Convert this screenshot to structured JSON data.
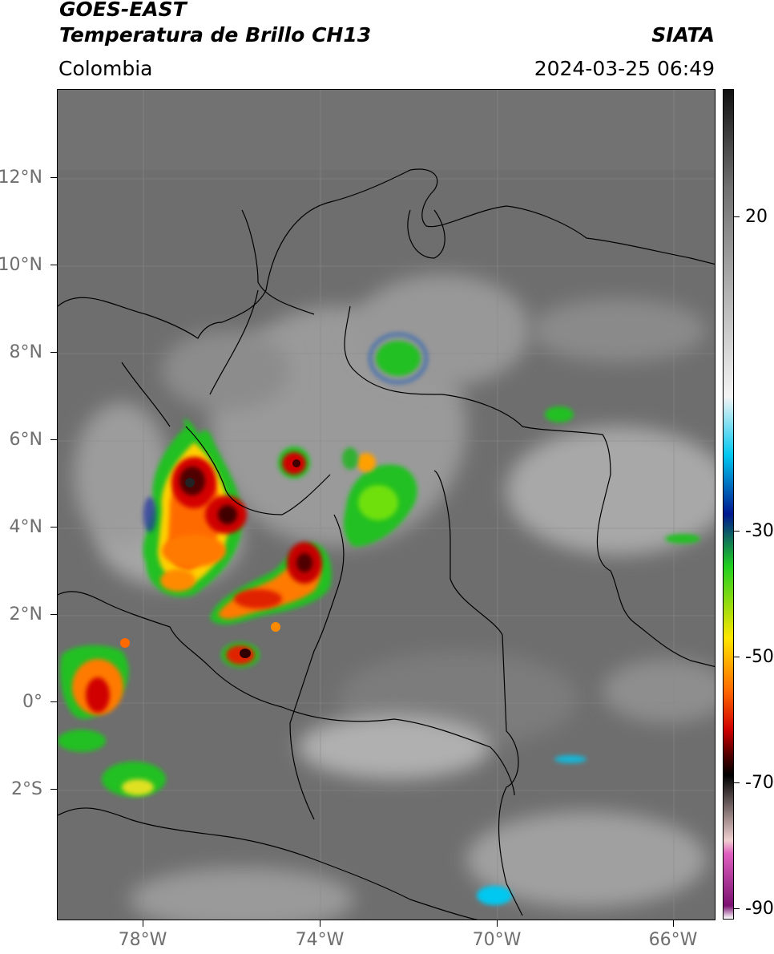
{
  "header": {
    "satellite": "GOES-EAST",
    "product": "Temperatura de Brillo CH13",
    "region": "Colombia",
    "brand": "SIATA",
    "datetime": "2024-03-25 06:49"
  },
  "axes": {
    "lat_ticks": [
      "12°N",
      "10°N",
      "8°N",
      "6°N",
      "4°N",
      "2°N",
      "0°",
      "2°S"
    ],
    "lon_ticks": [
      "78°W",
      "74°W",
      "70°W",
      "66°W"
    ]
  },
  "colorbar": {
    "ticks": [
      "20",
      "-30",
      "-50",
      "-70",
      "-90"
    ],
    "stops": [
      {
        "value": 35,
        "color": "#111111"
      },
      {
        "value": 20,
        "color": "#707070"
      },
      {
        "value": -12,
        "color": "#f4f4f4"
      },
      {
        "value": -21,
        "color": "#00c8f0"
      },
      {
        "value": -30,
        "color": "#001890"
      },
      {
        "value": -38,
        "color": "#20d020"
      },
      {
        "value": -49,
        "color": "#ffe600"
      },
      {
        "value": -57,
        "color": "#ff6a00"
      },
      {
        "value": -63,
        "color": "#d00000"
      },
      {
        "value": -67,
        "color": "#500000"
      },
      {
        "value": -70,
        "color": "#000000"
      },
      {
        "value": -80,
        "color": "#f0d0d0"
      },
      {
        "value": -82,
        "color": "#e060c0"
      },
      {
        "value": -90,
        "color": "#7a1070"
      },
      {
        "value": -92,
        "color": "#ffffff"
      }
    ]
  }
}
